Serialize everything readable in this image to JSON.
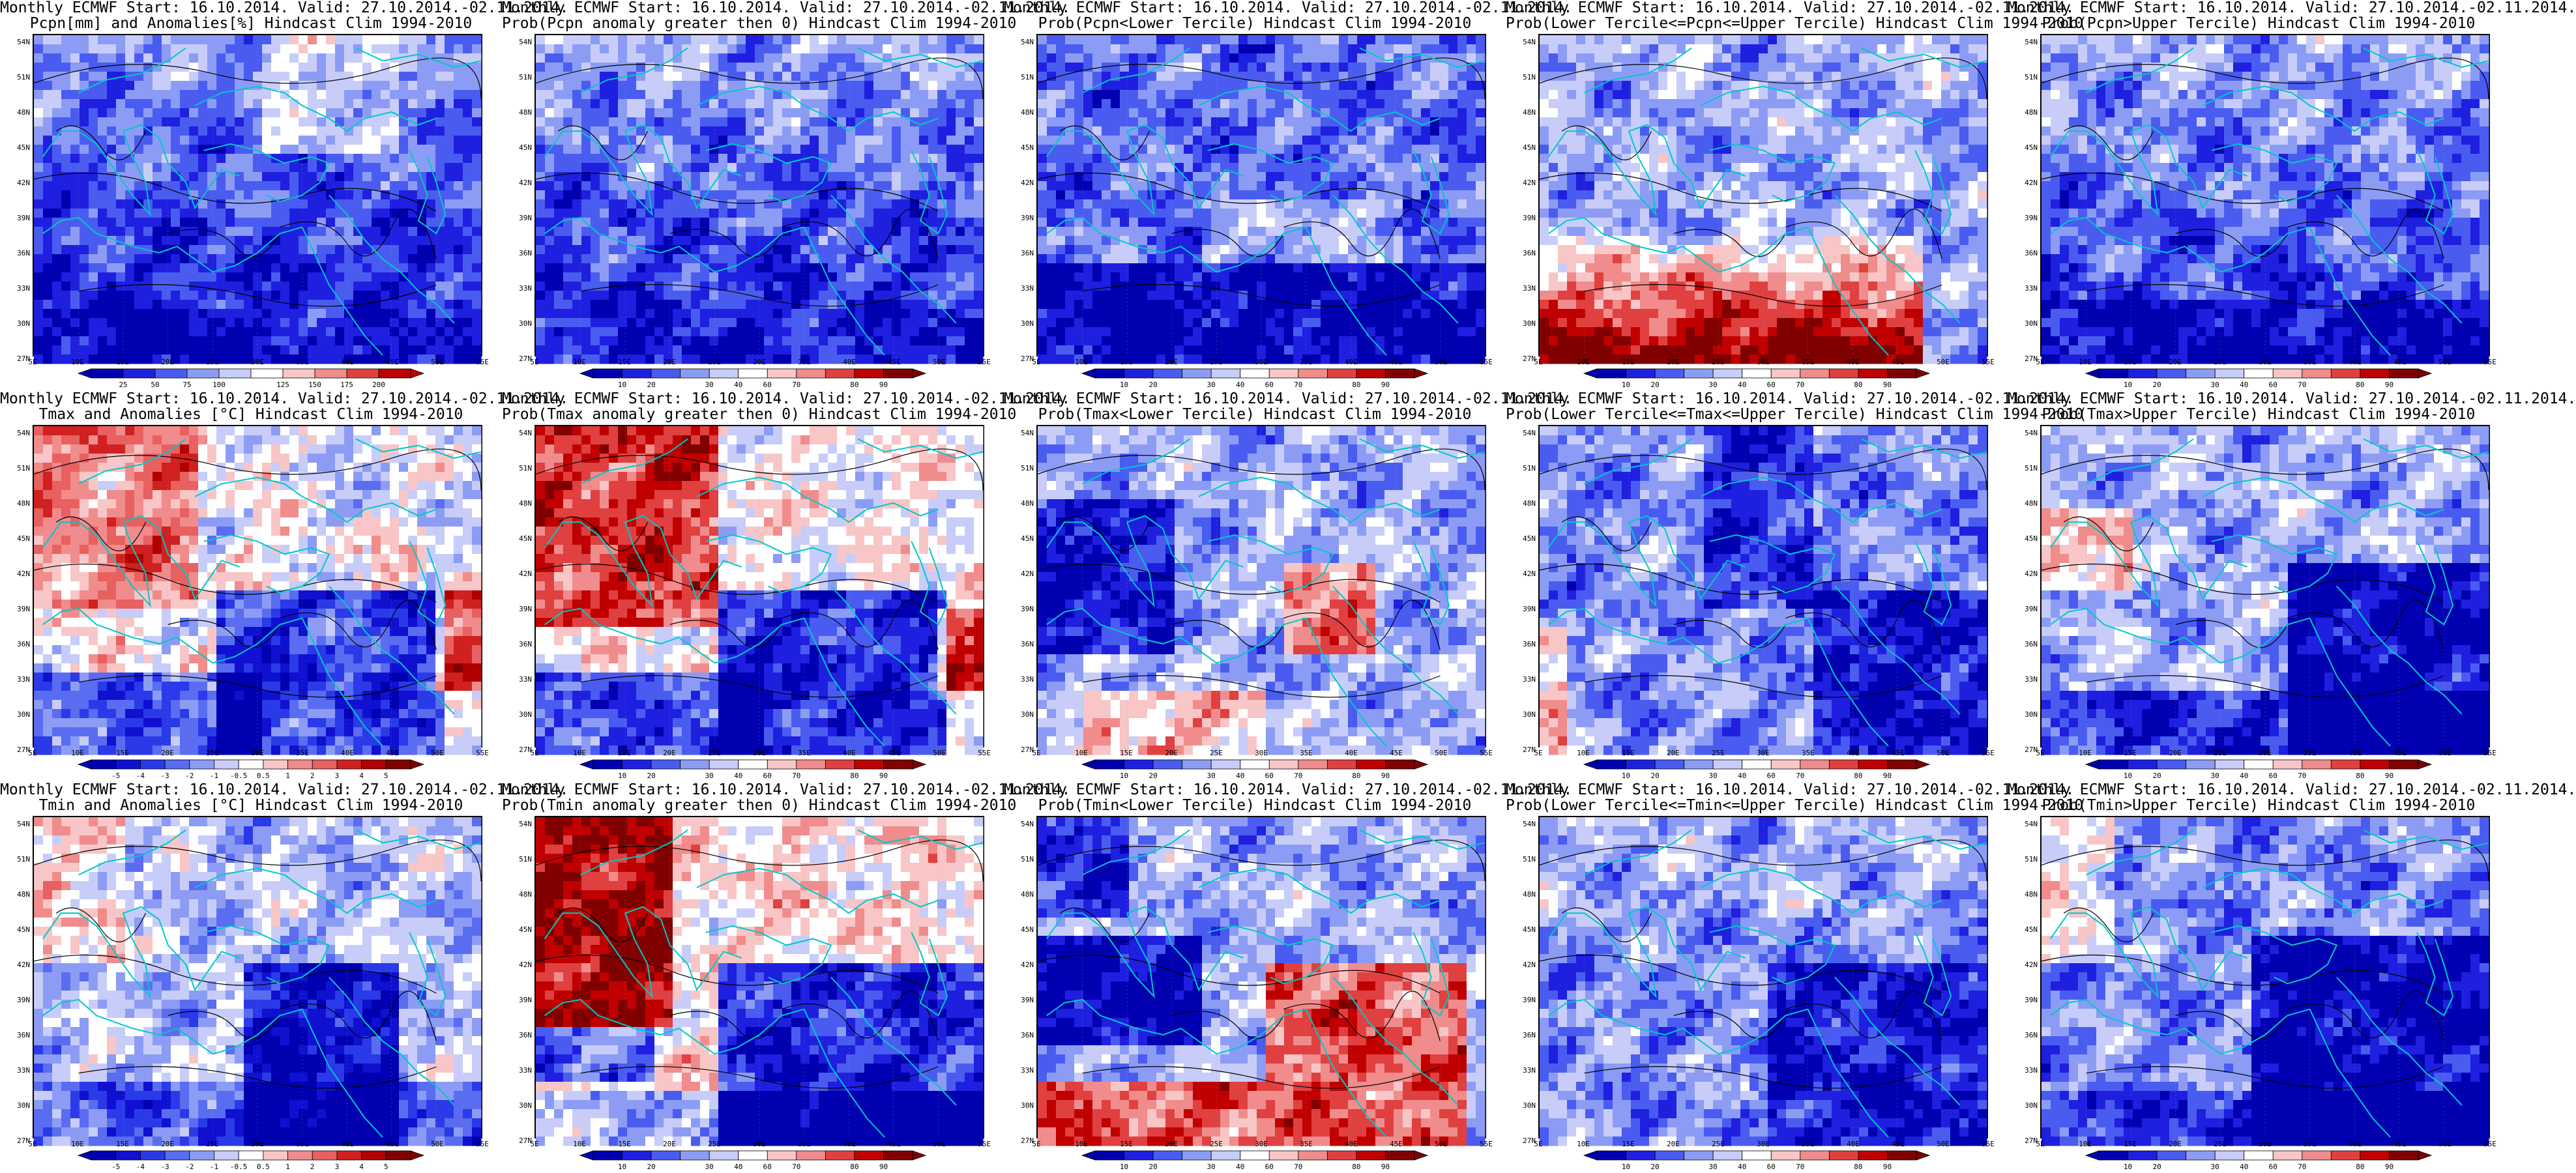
{
  "panels": [
    {
      "line1": "Monthly ECMWF Start: 16.10.2014. Valid: 27.10.2014.-02.11.2014.",
      "line2": "Pcpn[mm] and Anomalies[%] Hindcast Clim 1994-2010",
      "scale": "anom_pcpn",
      "style": "pcpn_anom"
    },
    {
      "line1": "Monthly ECMWF Start: 16.10.2014. Valid: 27.10.2014.-02.11.2014.",
      "line2": "Prob(Pcpn anomaly greater then 0) Hindcast Clim 1994-2010",
      "scale": "prob",
      "style": "pcpn_pos"
    },
    {
      "line1": "Monthly ECMWF Start: 16.10.2014. Valid: 27.10.2014.-02.11.2014.",
      "line2": "Prob(Pcpn<Lower Tercile) Hindcast Clim 1994-2010",
      "scale": "prob",
      "style": "pcpn_low"
    },
    {
      "line1": "Monthly ECMWF Start: 16.10.2014. Valid: 27.10.2014.-02.11.2014.",
      "line2": "Prob(Lower Tercile<=Pcpn<=Upper Tercile) Hindcast Clim 1994-2010",
      "scale": "prob",
      "style": "pcpn_mid"
    },
    {
      "line1": "Monthly ECMWF Start: 16.10.2014. Valid: 27.10.2014.-02.11.2014.",
      "line2": "Prob(Pcpn>Upper Tercile) Hindcast Clim 1994-2010",
      "scale": "prob",
      "style": "pcpn_up"
    },
    {
      "line1": "Monthly ECMWF Start: 16.10.2014. Valid: 27.10.2014.-02.11.2014.",
      "line2": "Tmax and Anomalies [°C] Hindcast Clim 1994-2010",
      "scale": "anom_temp",
      "style": "tmax_anom"
    },
    {
      "line1": "Monthly ECMWF Start: 16.10.2014. Valid: 27.10.2014.-02.11.2014.",
      "line2": "Prob(Tmax anomaly greater then 0) Hindcast Clim 1994-2010",
      "scale": "prob",
      "style": "tmax_pos"
    },
    {
      "line1": "Monthly ECMWF Start: 16.10.2014. Valid: 27.10.2014.-02.11.2014.",
      "line2": "Prob(Tmax<Lower Tercile) Hindcast Clim 1994-2010",
      "scale": "prob",
      "style": "tmax_low"
    },
    {
      "line1": "Monthly ECMWF Start: 16.10.2014. Valid: 27.10.2014.-02.11.2014.",
      "line2": "Prob(Lower Tercile<=Tmax<=Upper Tercile) Hindcast Clim 1994-2010",
      "scale": "prob",
      "style": "tmax_mid"
    },
    {
      "line1": "Monthly ECMWF Start: 16.10.2014. Valid: 27.10.2014.-02.11.2014.",
      "line2": "Prob(Tmax>Upper Tercile) Hindcast Clim 1994-2010",
      "scale": "prob",
      "style": "tmax_up"
    },
    {
      "line1": "Monthly ECMWF Start: 16.10.2014. Valid: 27.10.2014.-02.11.2014.",
      "line2": "Tmin and Anomalies [°C] Hindcast Clim 1994-2010",
      "scale": "anom_temp",
      "style": "tmin_anom"
    },
    {
      "line1": "Monthly ECMWF Start: 16.10.2014. Valid: 27.10.2014.-02.11.2014.",
      "line2": "Prob(Tmin anomaly greater then 0) Hindcast Clim 1994-2010",
      "scale": "prob",
      "style": "tmin_pos"
    },
    {
      "line1": "Monthly ECMWF Start: 16.10.2014. Valid: 27.10.2014.-02.11.2014.",
      "line2": "Prob(Tmin<Lower Tercile) Hindcast Clim 1994-2010",
      "scale": "prob",
      "style": "tmin_low"
    },
    {
      "line1": "Monthly ECMWF Start: 16.10.2014. Valid: 27.10.2014.-02.11.2014.",
      "line2": "Prob(Lower Tercile<=Tmin<=Upper Tercile) Hindcast Clim 1994-2010",
      "scale": "prob",
      "style": "tmin_mid"
    },
    {
      "line1": "Monthly ECMWF Start: 16.10.2014. Valid: 27.10.2014.-02.11.2014.",
      "line2": "Prob(Tmin>Upper Tercile) Hindcast Clim 1994-2010",
      "scale": "prob",
      "style": "tmin_up"
    }
  ],
  "lat_labels": [
    "54N",
    "51N",
    "48N",
    "45N",
    "42N",
    "39N",
    "36N",
    "33N",
    "30N",
    "27N"
  ],
  "lon_labels": [
    "5E",
    "10E",
    "15E",
    "20E",
    "25E",
    "30E",
    "35E",
    "40E",
    "45E",
    "50E",
    "55E"
  ],
  "scales": {
    "prob": {
      "ticks": [
        "10",
        "20",
        "30",
        "40",
        "60",
        "70",
        "80",
        "90"
      ],
      "colors": [
        "#0000b0",
        "#1f1fe0",
        "#4a5cf0",
        "#8c9cf5",
        "#c7cdf8",
        "#ffffff",
        "#f8c6c6",
        "#f08c8c",
        "#e04040",
        "#c00000",
        "#800000"
      ]
    },
    "anom_pcpn": {
      "ticks": [
        "25",
        "50",
        "75",
        "100",
        "125",
        "150",
        "175",
        "200"
      ],
      "colors": [
        "#0000b0",
        "#1f1fe0",
        "#4a5cf0",
        "#8c9cf5",
        "#c7cdf8",
        "#ffffff",
        "#f8c6c6",
        "#f08c8c",
        "#e04040",
        "#c00000"
      ]
    },
    "anom_temp": {
      "ticks": [
        "-5",
        "-4",
        "-3",
        "-2",
        "-1",
        "-0.5",
        "0.5",
        "1",
        "2",
        "3",
        "4",
        "5"
      ],
      "colors": [
        "#0000b0",
        "#1010d0",
        "#2a3ae8",
        "#5a6cf0",
        "#8c9cf5",
        "#c7cdf8",
        "#ffffff",
        "#f8c6c6",
        "#f08c8c",
        "#e86060",
        "#d02020",
        "#b00000",
        "#800000"
      ]
    }
  },
  "palette": {
    "coast": "#00c8c8",
    "contour": "#000000",
    "land_border": "#000000"
  }
}
